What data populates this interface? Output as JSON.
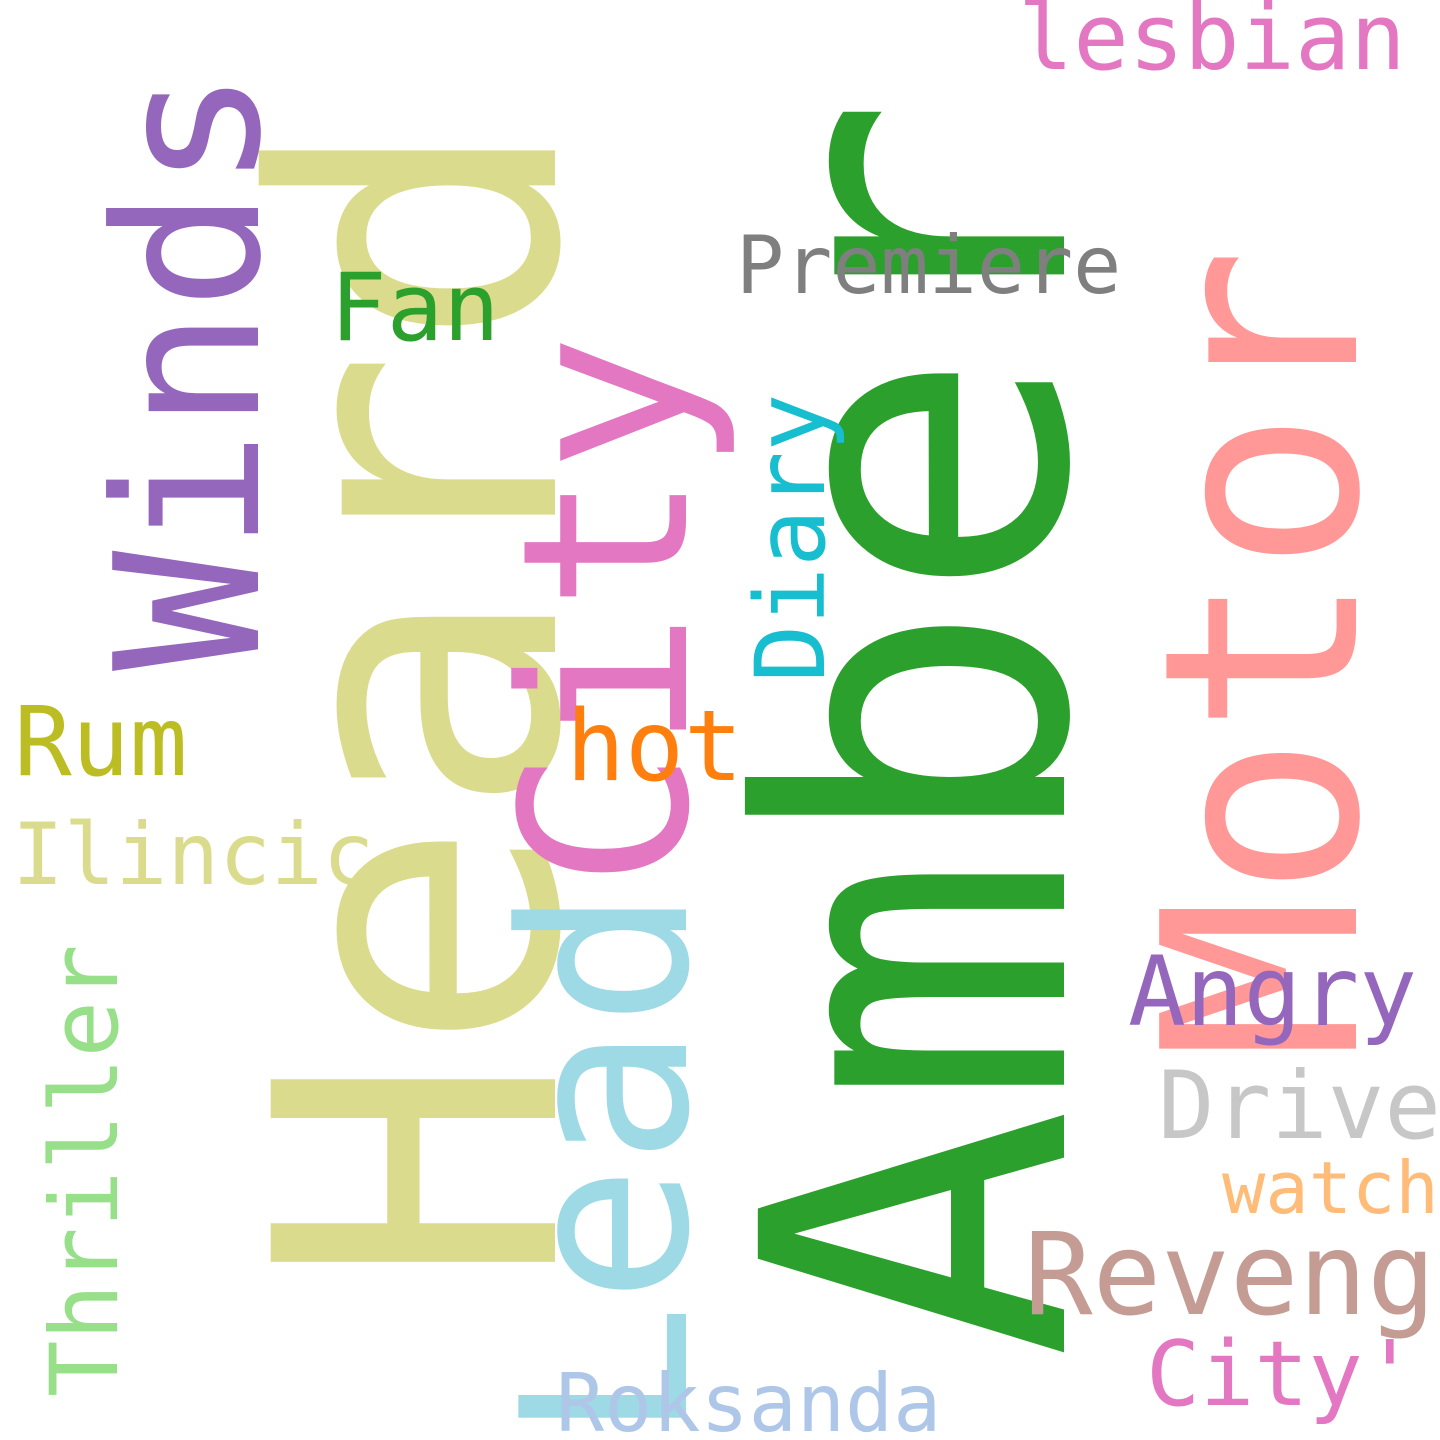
{
  "words": {
    "heard": {
      "text": "Heard",
      "color": "#dbdb8d"
    },
    "amber": {
      "text": "Amber",
      "color": "#2ca02c"
    },
    "motor": {
      "text": "Motor",
      "color": "#ff9896"
    },
    "leadcity": {
      "text": "LeadCity",
      "color": "#e377c2"
    },
    "winds": {
      "text": "Winds",
      "color": "#9467bd"
    },
    "lesbian": {
      "text": "lesbian",
      "color": "#e377c2"
    },
    "premiere": {
      "text": "Premiere",
      "color": "#7f7f7f"
    },
    "fan": {
      "text": "Fan",
      "color": "#2ca02c"
    },
    "diary": {
      "text": "Diary",
      "color": "#17becf"
    },
    "rum": {
      "text": "Rum",
      "color": "#bcbd22"
    },
    "hot": {
      "text": "hot",
      "color": "#ff7f0e"
    },
    "ilincic": {
      "text": "Ilincic",
      "color": "#dbdb8d"
    },
    "angry": {
      "text": "Angry",
      "color": "#9467bd"
    },
    "thriller": {
      "text": "Thriller",
      "color": "#98df8a"
    },
    "drive": {
      "text": "Drive",
      "color": "#c7c7c7"
    },
    "watch": {
      "text": "watch",
      "color": "#ffbb78"
    },
    "revenge": {
      "text": "Revenge",
      "color": "#c49c94"
    },
    "cityq": {
      "text": "City'",
      "color": "#e377c2"
    },
    "roksanda": {
      "text": "Roksanda",
      "color": "#aec7e8"
    }
  },
  "leadcity_parts": {
    "lead": {
      "text": "Lead",
      "color": "#9edae5"
    },
    "city": {
      "text": "City",
      "color": "#e377c2"
    }
  }
}
